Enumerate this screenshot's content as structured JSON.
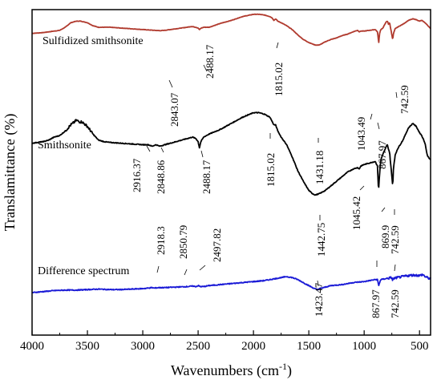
{
  "chart_data": {
    "type": "line",
    "title": "",
    "xlabel": "Wavenumbers (cm",
    "xlabel_sup": "-1",
    "xlabel_tail": ")",
    "ylabel": "Translamittance (%)",
    "xlim": [
      4000,
      400
    ],
    "x_ticks": [
      4000,
      3500,
      3000,
      2500,
      2000,
      1500,
      1000,
      500
    ],
    "y_ticks_shown": false,
    "grid": false,
    "series": [
      {
        "name": "Sulfidized smithsonite",
        "color": "#b03a2e",
        "points": [
          [
            4000,
            72
          ],
          [
            3900,
            73
          ],
          [
            3800,
            75
          ],
          [
            3750,
            76
          ],
          [
            3700,
            80
          ],
          [
            3650,
            86
          ],
          [
            3600,
            88
          ],
          [
            3560,
            88
          ],
          [
            3500,
            86
          ],
          [
            3450,
            82
          ],
          [
            3400,
            80
          ],
          [
            3300,
            80
          ],
          [
            3200,
            79
          ],
          [
            3100,
            78
          ],
          [
            3000,
            77
          ],
          [
            2950,
            76.5
          ],
          [
            2900,
            76
          ],
          [
            2843,
            75.5
          ],
          [
            2800,
            76
          ],
          [
            2700,
            78
          ],
          [
            2600,
            80
          ],
          [
            2560,
            81
          ],
          [
            2520,
            80
          ],
          [
            2500,
            79
          ],
          [
            2488,
            77
          ],
          [
            2470,
            79
          ],
          [
            2450,
            80
          ],
          [
            2400,
            80
          ],
          [
            2300,
            85
          ],
          [
            2200,
            89
          ],
          [
            2100,
            94
          ],
          [
            2000,
            97
          ],
          [
            1950,
            97
          ],
          [
            1900,
            96
          ],
          [
            1850,
            94
          ],
          [
            1830,
            92
          ],
          [
            1815,
            89
          ],
          [
            1800,
            91
          ],
          [
            1780,
            88
          ],
          [
            1750,
            86
          ],
          [
            1700,
            82
          ],
          [
            1650,
            77
          ],
          [
            1600,
            70
          ],
          [
            1550,
            64
          ],
          [
            1500,
            60
          ],
          [
            1450,
            57
          ],
          [
            1431,
            56.5
          ],
          [
            1400,
            57
          ],
          [
            1350,
            61
          ],
          [
            1300,
            64
          ],
          [
            1250,
            66
          ],
          [
            1200,
            69
          ],
          [
            1150,
            71
          ],
          [
            1100,
            74
          ],
          [
            1060,
            76
          ],
          [
            1043,
            74
          ],
          [
            1030,
            75
          ],
          [
            1000,
            75
          ],
          [
            950,
            76
          ],
          [
            900,
            77
          ],
          [
            880,
            74
          ],
          [
            868,
            60
          ],
          [
            860,
            72
          ],
          [
            850,
            77
          ],
          [
            830,
            79
          ],
          [
            810,
            85
          ],
          [
            800,
            87
          ],
          [
            790,
            88
          ],
          [
            780,
            84
          ],
          [
            770,
            86
          ],
          [
            750,
            70
          ],
          [
            742,
            64
          ],
          [
            735,
            72
          ],
          [
            720,
            78
          ],
          [
            700,
            80
          ],
          [
            650,
            84
          ],
          [
            600,
            89
          ],
          [
            560,
            91
          ],
          [
            530,
            90
          ],
          [
            500,
            88
          ],
          [
            480,
            89
          ],
          [
            450,
            86
          ],
          [
            430,
            83
          ],
          [
            410,
            80
          ],
          [
            400,
            78
          ]
        ]
      },
      {
        "name": "Smithsonite",
        "color": "#000000",
        "points": [
          [
            4000,
            56
          ],
          [
            3900,
            57
          ],
          [
            3850,
            58
          ],
          [
            3800,
            60
          ],
          [
            3750,
            61
          ],
          [
            3700,
            64
          ],
          [
            3650,
            68
          ],
          [
            3600,
            71
          ],
          [
            3570,
            70
          ],
          [
            3550,
            70
          ],
          [
            3500,
            67
          ],
          [
            3450,
            62
          ],
          [
            3400,
            58
          ],
          [
            3350,
            57
          ],
          [
            3300,
            56.5
          ],
          [
            3200,
            56
          ],
          [
            3100,
            55.5
          ],
          [
            3000,
            55
          ],
          [
            2950,
            55
          ],
          [
            2916,
            54
          ],
          [
            2880,
            55
          ],
          [
            2849,
            54
          ],
          [
            2800,
            55
          ],
          [
            2700,
            57
          ],
          [
            2600,
            59
          ],
          [
            2550,
            60
          ],
          [
            2520,
            59
          ],
          [
            2500,
            57
          ],
          [
            2488,
            53
          ],
          [
            2475,
            57
          ],
          [
            2450,
            60
          ],
          [
            2400,
            62
          ],
          [
            2300,
            65
          ],
          [
            2200,
            69
          ],
          [
            2100,
            73
          ],
          [
            2000,
            76
          ],
          [
            1950,
            76
          ],
          [
            1900,
            75
          ],
          [
            1850,
            73
          ],
          [
            1830,
            70
          ],
          [
            1815,
            68
          ],
          [
            1800,
            68
          ],
          [
            1780,
            64
          ],
          [
            1750,
            60
          ],
          [
            1700,
            55
          ],
          [
            1650,
            47
          ],
          [
            1600,
            38
          ],
          [
            1550,
            31
          ],
          [
            1500,
            25
          ],
          [
            1470,
            23
          ],
          [
            1442,
            22
          ],
          [
            1420,
            22.5
          ],
          [
            1400,
            23
          ],
          [
            1350,
            25
          ],
          [
            1300,
            28
          ],
          [
            1250,
            31
          ],
          [
            1200,
            34
          ],
          [
            1150,
            37
          ],
          [
            1100,
            39
          ],
          [
            1060,
            40
          ],
          [
            1045,
            39
          ],
          [
            1030,
            41
          ],
          [
            1000,
            42
          ],
          [
            950,
            43
          ],
          [
            900,
            44
          ],
          [
            880,
            41
          ],
          [
            870,
            25
          ],
          [
            860,
            36
          ],
          [
            850,
            45
          ],
          [
            830,
            49
          ],
          [
            810,
            52
          ],
          [
            800,
            54
          ],
          [
            790,
            55
          ],
          [
            780,
            52
          ],
          [
            770,
            50
          ],
          [
            750,
            34
          ],
          [
            742,
            28
          ],
          [
            735,
            40
          ],
          [
            720,
            48
          ],
          [
            700,
            52
          ],
          [
            650,
            58
          ],
          [
            600,
            66
          ],
          [
            560,
            69
          ],
          [
            530,
            67
          ],
          [
            500,
            63
          ],
          [
            480,
            61
          ],
          [
            450,
            56
          ],
          [
            430,
            48
          ],
          [
            410,
            46
          ],
          [
            400,
            45
          ]
        ]
      },
      {
        "name": "Difference spectrum",
        "color": "#1a1ad6",
        "points": [
          [
            4000,
            4
          ],
          [
            3900,
            5
          ],
          [
            3800,
            6
          ],
          [
            3700,
            6.5
          ],
          [
            3600,
            6.5
          ],
          [
            3500,
            7
          ],
          [
            3400,
            7.5
          ],
          [
            3300,
            7
          ],
          [
            3200,
            7
          ],
          [
            3100,
            7.5
          ],
          [
            3000,
            8
          ],
          [
            2950,
            8.5
          ],
          [
            2918,
            9
          ],
          [
            2900,
            8.5
          ],
          [
            2851,
            9
          ],
          [
            2800,
            9
          ],
          [
            2700,
            9.5
          ],
          [
            2600,
            10
          ],
          [
            2550,
            10.5
          ],
          [
            2520,
            10
          ],
          [
            2498,
            11
          ],
          [
            2480,
            10
          ],
          [
            2450,
            10
          ],
          [
            2400,
            11
          ],
          [
            2300,
            12
          ],
          [
            2200,
            13
          ],
          [
            2100,
            14
          ],
          [
            2000,
            15
          ],
          [
            1900,
            16
          ],
          [
            1800,
            18
          ],
          [
            1750,
            19
          ],
          [
            1700,
            20
          ],
          [
            1650,
            19
          ],
          [
            1600,
            17
          ],
          [
            1550,
            14
          ],
          [
            1500,
            11
          ],
          [
            1450,
            8
          ],
          [
            1423,
            7
          ],
          [
            1400,
            8
          ],
          [
            1350,
            9.5
          ],
          [
            1300,
            11
          ],
          [
            1200,
            12
          ],
          [
            1100,
            14
          ],
          [
            1000,
            15
          ],
          [
            950,
            16
          ],
          [
            900,
            17
          ],
          [
            880,
            17
          ],
          [
            868,
            11
          ],
          [
            860,
            14
          ],
          [
            850,
            17
          ],
          [
            800,
            18
          ],
          [
            750,
            19
          ],
          [
            742,
            16
          ],
          [
            735,
            18
          ],
          [
            700,
            19
          ],
          [
            650,
            20
          ],
          [
            600,
            21
          ],
          [
            550,
            21.5
          ],
          [
            500,
            21
          ],
          [
            470,
            22
          ],
          [
            450,
            20
          ],
          [
            430,
            19
          ],
          [
            410,
            18
          ],
          [
            400,
            18
          ]
        ]
      }
    ],
    "annotations": [
      {
        "text": "2843.07",
        "series": 0,
        "x": 2843
      },
      {
        "text": "2488.17",
        "series": 0,
        "x": 2488
      },
      {
        "text": "1815.02",
        "series": 0,
        "x": 1815
      },
      {
        "text": "1431.18",
        "series": 0,
        "x": 1431
      },
      {
        "text": "1043.49",
        "series": 0,
        "x": 1043
      },
      {
        "text": "867.97",
        "series": 0,
        "x": 868
      },
      {
        "text": "742.59",
        "series": 0,
        "x": 742
      },
      {
        "text": "2916.37",
        "series": 1,
        "x": 2916
      },
      {
        "text": "2848.86",
        "series": 1,
        "x": 2849
      },
      {
        "text": "2488.17",
        "series": 1,
        "x": 2488
      },
      {
        "text": "1815.02",
        "series": 1,
        "x": 1815
      },
      {
        "text": "1442.75",
        "series": 1,
        "x": 1442
      },
      {
        "text": "1045.42",
        "series": 1,
        "x": 1045
      },
      {
        "text": "869.9",
        "series": 1,
        "x": 870
      },
      {
        "text": "742.59",
        "series": 1,
        "x": 742
      },
      {
        "text": "2918.3",
        "series": 2,
        "x": 2918
      },
      {
        "text": "2850.79",
        "series": 2,
        "x": 2851
      },
      {
        "text": "2497.82",
        "series": 2,
        "x": 2498
      },
      {
        "text": "1423.47",
        "series": 2,
        "x": 1423
      },
      {
        "text": "867.97",
        "series": 2,
        "x": 868
      },
      {
        "text": "742.59",
        "series": 2,
        "x": 742
      }
    ]
  }
}
